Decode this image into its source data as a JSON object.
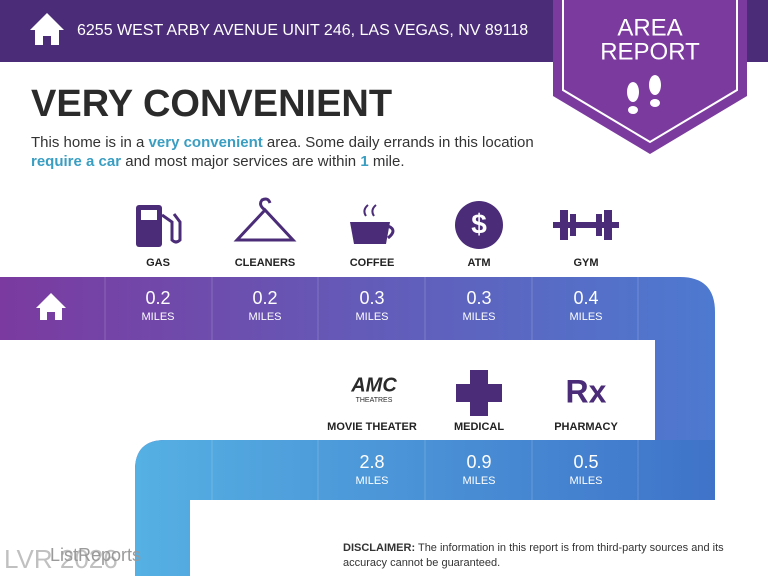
{
  "header": {
    "address": "6255 WEST ARBY AVENUE UNIT 246, LAS VEGAS, NV 89118",
    "badge": [
      "AREA",
      "REPORT"
    ]
  },
  "headline": "VERY CONVENIENT",
  "summary": [
    "This home is in a ",
    "very convenient",
    " area. Some daily errands in this location ",
    "require a car",
    " and most major services are within ",
    "1",
    " mile."
  ],
  "amenities": [
    {
      "name": "GAS",
      "distance": 0.2,
      "unit": "MILES"
    },
    {
      "name": "CLEANERS",
      "distance": 0.2,
      "unit": "MILES"
    },
    {
      "name": "COFFEE",
      "distance": 0.3,
      "unit": "MILES"
    },
    {
      "name": "ATM",
      "distance": 0.3,
      "unit": "MILES"
    },
    {
      "name": "GYM",
      "distance": 0.4,
      "unit": "MILES"
    },
    {
      "name": "MOVIE THEATER",
      "distance": 2.8,
      "unit": "MILES"
    },
    {
      "name": "MEDICAL",
      "distance": 0.9,
      "unit": "MILES"
    },
    {
      "name": "PHARMACY",
      "distance": 0.5,
      "unit": "MILES"
    }
  ],
  "icon_texts": {
    "amc": "AMC",
    "theatres": "THEATRES",
    "atm": "$",
    "rx": "Rx"
  },
  "disclaimer": {
    "label": "DISCLAIMER:",
    "text": "The information in this report is from third-party sources and its accuracy cannot be guaranteed."
  },
  "footer": {
    "brand": "ListReports",
    "watermark": "LVR 2026"
  }
}
